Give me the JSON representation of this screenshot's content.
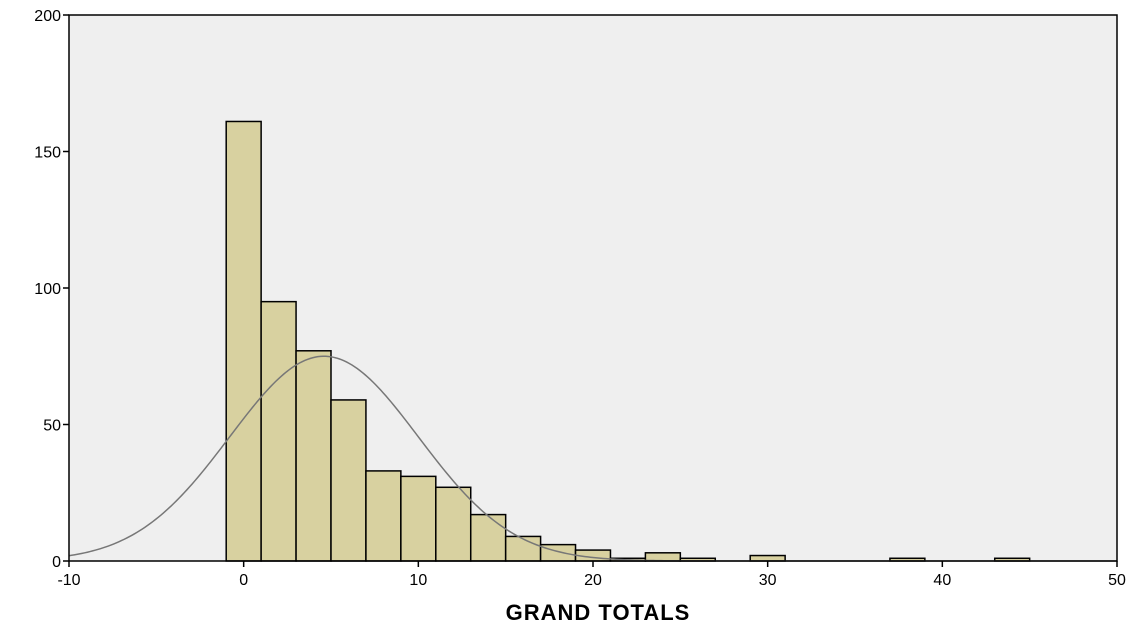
{
  "chart_data": {
    "type": "bar",
    "subtype": "histogram",
    "title": "",
    "xlabel": "GRAND TOTALS",
    "ylabel": "",
    "xlim": [
      -10,
      50
    ],
    "ylim": [
      0,
      200
    ],
    "x_ticks": [
      -10,
      0,
      10,
      20,
      30,
      40,
      50
    ],
    "y_ticks": [
      0,
      50,
      100,
      150,
      200
    ],
    "x_tick_labels": [
      "-10",
      "0",
      "10",
      "20",
      "30",
      "40",
      "50"
    ],
    "y_tick_labels": [
      "0",
      "50",
      "100",
      "150",
      "200"
    ],
    "bin_width": 2,
    "bins": [
      {
        "start": -1,
        "end": 1,
        "count": 161
      },
      {
        "start": 1,
        "end": 3,
        "count": 95
      },
      {
        "start": 3,
        "end": 5,
        "count": 77
      },
      {
        "start": 5,
        "end": 7,
        "count": 59
      },
      {
        "start": 7,
        "end": 9,
        "count": 33
      },
      {
        "start": 9,
        "end": 11,
        "count": 31
      },
      {
        "start": 11,
        "end": 13,
        "count": 27
      },
      {
        "start": 13,
        "end": 15,
        "count": 17
      },
      {
        "start": 15,
        "end": 17,
        "count": 9
      },
      {
        "start": 17,
        "end": 19,
        "count": 6
      },
      {
        "start": 19,
        "end": 21,
        "count": 4
      },
      {
        "start": 21,
        "end": 23,
        "count": 1
      },
      {
        "start": 23,
        "end": 25,
        "count": 3
      },
      {
        "start": 25,
        "end": 27,
        "count": 1
      },
      {
        "start": 27,
        "end": 29,
        "count": 0
      },
      {
        "start": 29,
        "end": 31,
        "count": 2
      },
      {
        "start": 31,
        "end": 33,
        "count": 0
      },
      {
        "start": 33,
        "end": 35,
        "count": 0
      },
      {
        "start": 35,
        "end": 37,
        "count": 0
      },
      {
        "start": 37,
        "end": 39,
        "count": 1
      },
      {
        "start": 39,
        "end": 41,
        "count": 0
      },
      {
        "start": 41,
        "end": 43,
        "count": 0
      },
      {
        "start": 43,
        "end": 45,
        "count": 1
      }
    ],
    "normal_curve": {
      "mean": 4.6,
      "sd": 5.4,
      "peak": 75
    },
    "grid": false,
    "legend": "none",
    "colors": {
      "plot_background": "#efefef",
      "bar_fill": "#d8d1a0",
      "bar_stroke": "#000000",
      "curve": "#777777",
      "axis": "#000000"
    }
  }
}
